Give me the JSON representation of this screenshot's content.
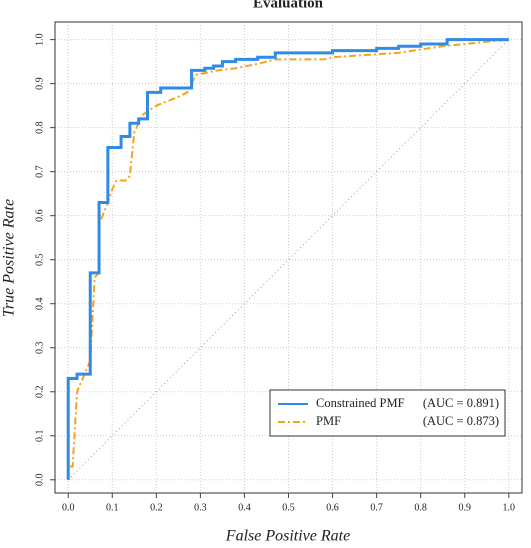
{
  "chart_data": {
    "type": "line",
    "title": "Evaluation",
    "x_label": "False Positive Rate",
    "y_label": "True Positive Rate",
    "xlim": [
      -0.03,
      1.03
    ],
    "ylim": [
      -0.03,
      1.04
    ],
    "xticks": [
      {
        "value": 0,
        "label": "0.0"
      },
      0.1,
      0.2,
      0.3,
      0.4,
      0.5,
      0.6,
      0.7,
      0.8,
      0.9,
      {
        "value": 1,
        "label": "1.0"
      }
    ],
    "yticks": [
      {
        "value": 0,
        "label": "0.0"
      },
      0.1,
      0.2,
      0.3,
      0.4,
      0.5,
      0.6,
      0.7,
      0.8,
      0.9,
      {
        "value": 1,
        "label": "1.0"
      }
    ],
    "grid": true,
    "diagonal": true,
    "legend": "bottom-right",
    "series": [
      {
        "name": "Constrained PMF",
        "auc_label": "(AUC = 0.891)",
        "color": "#2f8be6",
        "dash": "solid",
        "x": [
          0,
          0,
          0.02,
          0.02,
          0.05,
          0.05,
          0.07,
          0.07,
          0.09,
          0.09,
          0.12,
          0.12,
          0.14,
          0.14,
          0.16,
          0.16,
          0.18,
          0.18,
          0.21,
          0.21,
          0.28,
          0.28,
          0.31,
          0.31,
          0.33,
          0.33,
          0.35,
          0.35,
          0.38,
          0.38,
          0.43,
          0.43,
          0.47,
          0.47,
          0.6,
          0.6,
          0.7,
          0.7,
          0.75,
          0.75,
          0.8,
          0.8,
          0.86,
          0.86,
          1.0
        ],
        "values": [
          0,
          0.23,
          0.23,
          0.24,
          0.24,
          0.47,
          0.47,
          0.63,
          0.63,
          0.755,
          0.755,
          0.78,
          0.78,
          0.81,
          0.81,
          0.82,
          0.82,
          0.88,
          0.88,
          0.89,
          0.89,
          0.93,
          0.93,
          0.935,
          0.935,
          0.94,
          0.94,
          0.95,
          0.95,
          0.955,
          0.955,
          0.96,
          0.96,
          0.97,
          0.97,
          0.975,
          0.975,
          0.98,
          0.98,
          0.985,
          0.985,
          0.99,
          0.99,
          1.0,
          1.0
        ]
      },
      {
        "name": "PMF",
        "auc_label": "(AUC = 0.873)",
        "color": "#f5a31a",
        "dash": "dashdot",
        "x": [
          0,
          0,
          0.01,
          0.02,
          0.05,
          0.06,
          0.07,
          0.07,
          0.09,
          0.1,
          0.11,
          0.13,
          0.14,
          0.15,
          0.17,
          0.2,
          0.25,
          0.27,
          0.29,
          0.34,
          0.38,
          0.43,
          0.47,
          0.58,
          0.6,
          0.75,
          0.85,
          0.95,
          1.0
        ],
        "values": [
          0,
          0.03,
          0.03,
          0.2,
          0.27,
          0.46,
          0.47,
          0.58,
          0.63,
          0.66,
          0.68,
          0.68,
          0.69,
          0.79,
          0.83,
          0.85,
          0.87,
          0.88,
          0.92,
          0.93,
          0.935,
          0.945,
          0.955,
          0.955,
          0.96,
          0.97,
          0.985,
          0.995,
          1.0
        ]
      }
    ]
  }
}
